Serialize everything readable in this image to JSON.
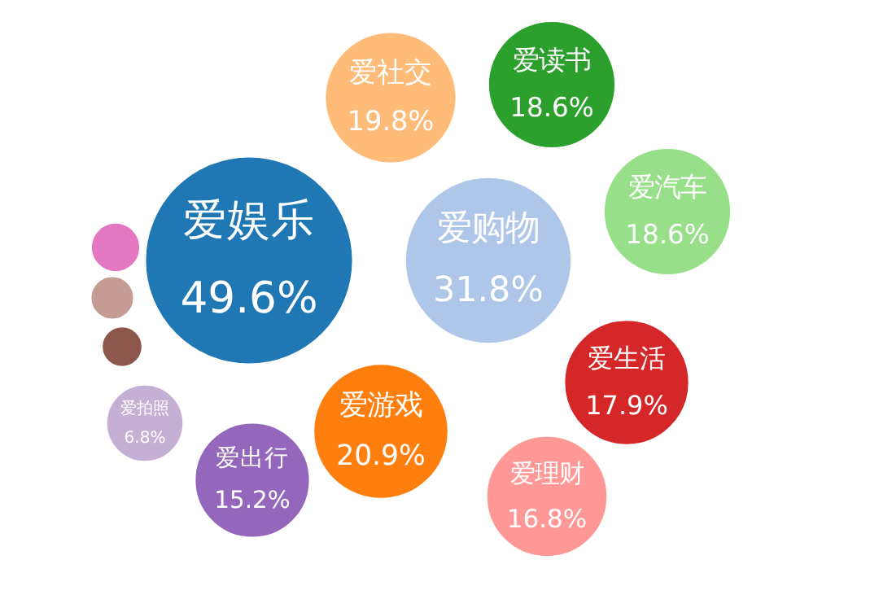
{
  "chart_data": {
    "type": "other",
    "categories": [
      "爱娱乐",
      "爱购物",
      "爱社交",
      "爱读书",
      "爱汽车",
      "爱生活",
      "爱理财",
      "爱游戏",
      "爱出行",
      "爱拍照",
      null,
      null,
      null
    ],
    "values": [
      49.6,
      31.8,
      19.8,
      18.6,
      18.6,
      17.9,
      16.8,
      20.9,
      15.2,
      6.8,
      null,
      null,
      null
    ],
    "value_labels": [
      "49.6%",
      "31.8%",
      "19.8%",
      "18.6%",
      "18.6%",
      "17.9%",
      "16.8%",
      "20.9%",
      "15.2%",
      "6.8%",
      null,
      null,
      null
    ],
    "colors": [
      "#1f77b4",
      "#aec7e8",
      "#ffbb78",
      "#2ca02c",
      "#98df8a",
      "#d62728",
      "#ff9896",
      "#ff7f0e",
      "#9467bd",
      "#c5b0d5",
      "#e377c2",
      "#c49c94",
      "#8c564b"
    ]
  }
}
